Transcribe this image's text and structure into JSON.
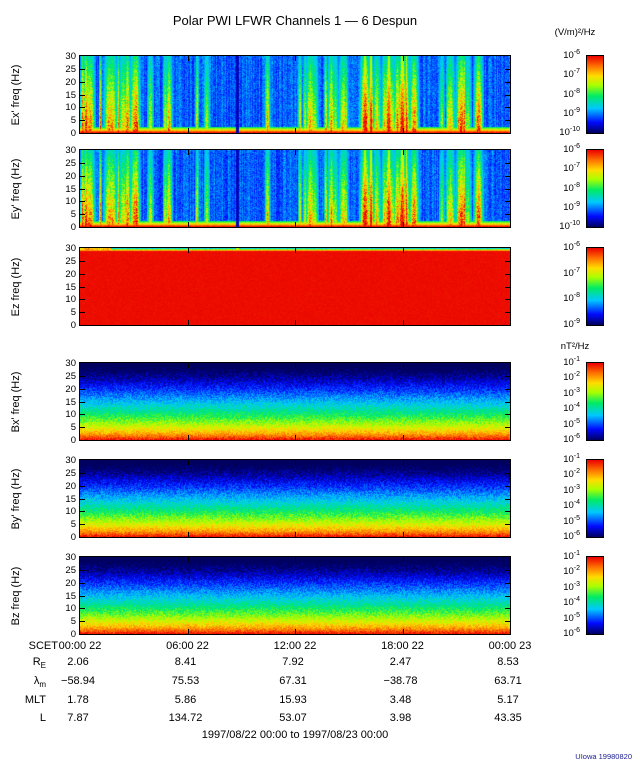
{
  "title": "Polar PWI LFWR Channels 1 — 6 Despun",
  "footer": "1997/08/22 00:00 to 1997/08/23 00:00",
  "credit": "UIowa 19980820",
  "units": {
    "e": "(V/m)²/Hz",
    "b": "nT²/Hz"
  },
  "yticks": [
    0,
    5,
    10,
    15,
    20,
    25,
    30
  ],
  "xaxis": {
    "label": "SCET",
    "ticks": [
      "00:00 22",
      "06:00 22",
      "12:00 22",
      "18:00 22",
      "00:00 23"
    ]
  },
  "panels": [
    {
      "key": "ex",
      "label": "Ex' freq (Hz)",
      "render": "e_burst",
      "pseed": 101,
      "nseed": 7,
      "cb_ticks": [
        "-6",
        "-7",
        "-8",
        "-9",
        "-10"
      ]
    },
    {
      "key": "ey",
      "label": "Ey' freq (Hz)",
      "render": "e_burst",
      "pseed": 101,
      "nseed": 8,
      "cb_ticks": [
        "-6",
        "-7",
        "-8",
        "-9",
        "-10"
      ]
    },
    {
      "key": "ez",
      "label": "Ez freq (Hz)",
      "render": "e_sat",
      "seed": 3,
      "cb_ticks": [
        "-6",
        "-7",
        "-8",
        "-9"
      ]
    },
    {
      "key": "bx",
      "label": "Bx' freq (Hz)",
      "render": "b_grad",
      "seed": 21,
      "cb_ticks": [
        "-1",
        "-2",
        "-3",
        "-4",
        "-5",
        "-6"
      ]
    },
    {
      "key": "by",
      "label": "By' freq (Hz)",
      "render": "b_grad",
      "seed": 22,
      "cb_ticks": [
        "-1",
        "-2",
        "-3",
        "-4",
        "-5",
        "-6"
      ]
    },
    {
      "key": "bz",
      "label": "Bz freq (Hz)",
      "render": "b_grad",
      "seed": 23,
      "cb_ticks": [
        "-1",
        "-2",
        "-3",
        "-4",
        "-5",
        "-6"
      ]
    }
  ],
  "table": {
    "rows": [
      {
        "key": "re",
        "label": "R",
        "sub": "E",
        "values": [
          "2.06",
          "8.41",
          "7.92",
          "2.47",
          "8.53"
        ]
      },
      {
        "key": "lambda",
        "label": "λ",
        "sub": "m",
        "values": [
          "−58.94",
          "75.53",
          "67.31",
          "−38.78",
          "63.71"
        ]
      },
      {
        "key": "mlt",
        "label": "MLT",
        "sub": "",
        "values": [
          "1.78",
          "5.86",
          "15.93",
          "3.48",
          "5.17"
        ]
      },
      {
        "key": "l",
        "label": "L",
        "sub": "",
        "values": [
          "7.87",
          "134.72",
          "53.07",
          "3.98",
          "43.35"
        ]
      }
    ]
  },
  "chart_data": {
    "type": "heatmap",
    "title": "Polar PWI LFWR Channels 1 — 6 Despun",
    "x_axis": {
      "label": "SCET",
      "start": "1997/08/22 00:00",
      "end": "1997/08/23 00:00",
      "ticks": [
        "00:00 22",
        "06:00 22",
        "12:00 22",
        "18:00 22",
        "00:00 23"
      ]
    },
    "y_axis": {
      "label": "freq (Hz)",
      "range": [
        0,
        30
      ],
      "ticks": [
        0,
        5,
        10,
        15,
        20,
        25,
        30
      ]
    },
    "panels": [
      {
        "channel": "Ex'",
        "unit": "(V/m)²/Hz",
        "color_scale_exp": [
          -10,
          -6
        ],
        "description": "bursty broadband electric emissions over low blue background; intense red band below ~3 Hz"
      },
      {
        "channel": "Ey'",
        "unit": "(V/m)²/Hz",
        "color_scale_exp": [
          -10,
          -6
        ],
        "description": "bursty broadband electric emissions similar to Ex'; intense red band below ~3 Hz"
      },
      {
        "channel": "Ez",
        "unit": "(V/m)²/Hz",
        "color_scale_exp": [
          -9,
          -6
        ],
        "description": "saturated at maximum (red) across nearly all frequencies, thin lower-intensity strip at 30 Hz"
      },
      {
        "channel": "Bx'",
        "unit": "nT²/Hz",
        "color_scale_exp": [
          -6,
          -1
        ],
        "description": "smooth spectral falloff: red/orange below ~5 Hz, green ~10 Hz, blue above ~15 Hz"
      },
      {
        "channel": "By'",
        "unit": "nT²/Hz",
        "color_scale_exp": [
          -6,
          -1
        ],
        "description": "smooth spectral falloff: red/orange below ~5 Hz, green ~10 Hz, blue above ~15 Hz"
      },
      {
        "channel": "Bz",
        "unit": "nT²/Hz",
        "color_scale_exp": [
          -6,
          -1
        ],
        "description": "smooth spectral falloff: red/orange below ~5 Hz, green ~10 Hz, blue above ~15 Hz"
      }
    ],
    "ephemeris": {
      "times": [
        "00:00 22",
        "06:00 22",
        "12:00 22",
        "18:00 22",
        "00:00 23"
      ],
      "RE": [
        2.06,
        8.41,
        7.92,
        2.47,
        8.53
      ],
      "lambda_m": [
        -58.94,
        75.53,
        67.31,
        -38.78,
        63.71
      ],
      "MLT": [
        1.78,
        5.86,
        15.93,
        3.48,
        5.17
      ],
      "L": [
        7.87,
        134.72,
        53.07,
        3.98,
        43.35
      ]
    }
  }
}
